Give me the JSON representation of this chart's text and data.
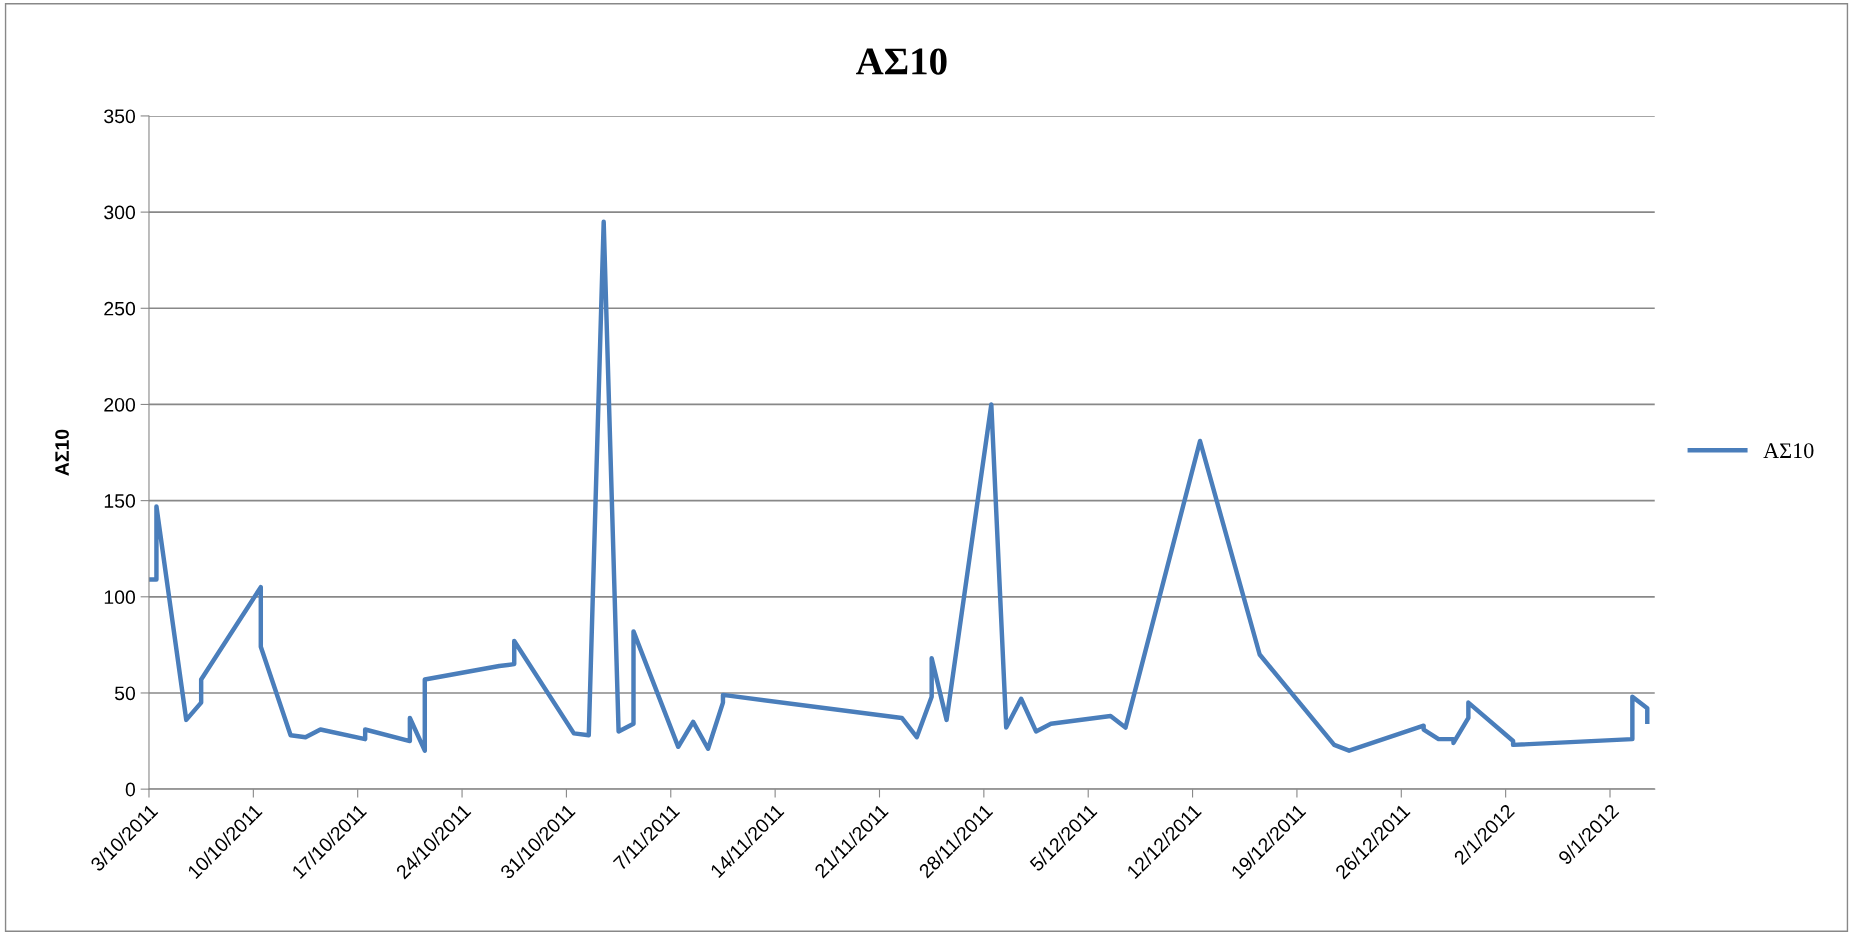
{
  "chart_data": {
    "type": "line",
    "title": "ΑΣ10",
    "ylabel": "ΑΣ10",
    "x": [
      "2011-10-03",
      "2011-10-03T12:00",
      "2011-10-03T12:00",
      "2011-10-05T12:00",
      "2011-10-06T12:00",
      "2011-10-06T12:00",
      "2011-10-10T12:00",
      "2011-10-10T12:00",
      "2011-10-12T12:00",
      "2011-10-13T12:00",
      "2011-10-14T12:00",
      "2011-10-17T12:00",
      "2011-10-17T12:00",
      "2011-10-20T12:00",
      "2011-10-20T12:00",
      "2011-10-21T12:00",
      "2011-10-21T12:00",
      "2011-10-26T12:00",
      "2011-10-27T12:00",
      "2011-10-27T12:00",
      "2011-10-31T12:00",
      "2011-11-01T12:00",
      "2011-11-02T12:00",
      "2011-11-03T12:00",
      "2011-11-04T12:00",
      "2011-11-04T12:00",
      "2011-11-07T12:00",
      "2011-11-08T12:00",
      "2011-11-09T12:00",
      "2011-11-10T12:00",
      "2011-11-10T12:00",
      "2011-11-22T12:00",
      "2011-11-23T12:00",
      "2011-11-24T12:00",
      "2011-11-24T12:00",
      "2011-11-25T12:00",
      "2011-11-28T12:00",
      "2011-11-29T12:00",
      "2011-11-30T12:00",
      "2011-12-01T12:00",
      "2011-12-02T12:00",
      "2011-12-06T12:00",
      "2011-12-07T12:00",
      "2011-12-12T12:00",
      "2011-12-16T12:00",
      "2011-12-21T12:00",
      "2011-12-22T12:00",
      "2011-12-27T12:00",
      "2011-12-27T12:00",
      "2011-12-28T12:00",
      "2011-12-29T12:00",
      "2011-12-29T12:00",
      "2011-12-30T12:00",
      "2011-12-30T12:00",
      "2012-01-02T12:00",
      "2012-01-02T12:00",
      "2012-01-10T12:00",
      "2012-01-10T12:00",
      "2012-01-11T12:00",
      "2012-01-11T12:00"
    ],
    "series": [
      {
        "name": "ΑΣ10",
        "color": "#4a7ebb",
        "values": [
          109,
          109,
          147,
          36,
          45,
          57,
          105,
          74,
          28,
          27,
          31,
          26,
          31,
          25,
          37,
          20,
          57,
          64,
          65,
          77,
          29,
          28,
          295,
          30,
          34,
          82,
          22,
          35,
          21,
          45,
          49,
          37,
          27,
          48,
          68,
          36,
          200,
          32,
          47,
          30,
          34,
          38,
          32,
          181,
          70,
          23,
          20,
          33,
          31,
          26,
          26,
          24,
          37,
          45,
          25,
          23,
          26,
          48,
          42,
          35
        ]
      }
    ],
    "xlim": [
      "2011-10-03",
      "2012-01-12"
    ],
    "xticks": [
      {
        "value": "2011-10-03",
        "label": "3/10/2011"
      },
      {
        "value": "2011-10-10",
        "label": "10/10/2011"
      },
      {
        "value": "2011-10-17",
        "label": "17/10/2011"
      },
      {
        "value": "2011-10-24",
        "label": "24/10/2011"
      },
      {
        "value": "2011-10-31",
        "label": "31/10/2011"
      },
      {
        "value": "2011-11-07",
        "label": "7/11/2011"
      },
      {
        "value": "2011-11-14",
        "label": "14/11/2011"
      },
      {
        "value": "2011-11-21",
        "label": "21/11/2011"
      },
      {
        "value": "2011-11-28",
        "label": "28/11/2011"
      },
      {
        "value": "2011-12-05",
        "label": "5/12/2011"
      },
      {
        "value": "2011-12-12",
        "label": "12/12/2011"
      },
      {
        "value": "2011-12-19",
        "label": "19/12/2011"
      },
      {
        "value": "2011-12-26",
        "label": "26/12/2011"
      },
      {
        "value": "2012-01-02",
        "label": "2/1/2012"
      },
      {
        "value": "2012-01-09",
        "label": "9/1/2012"
      }
    ],
    "ylim": [
      0,
      350
    ],
    "yticks": [
      0,
      50,
      100,
      150,
      200,
      250,
      300,
      350
    ],
    "grid": "y",
    "legend": "right",
    "marker": "none",
    "line_style": "solid"
  }
}
